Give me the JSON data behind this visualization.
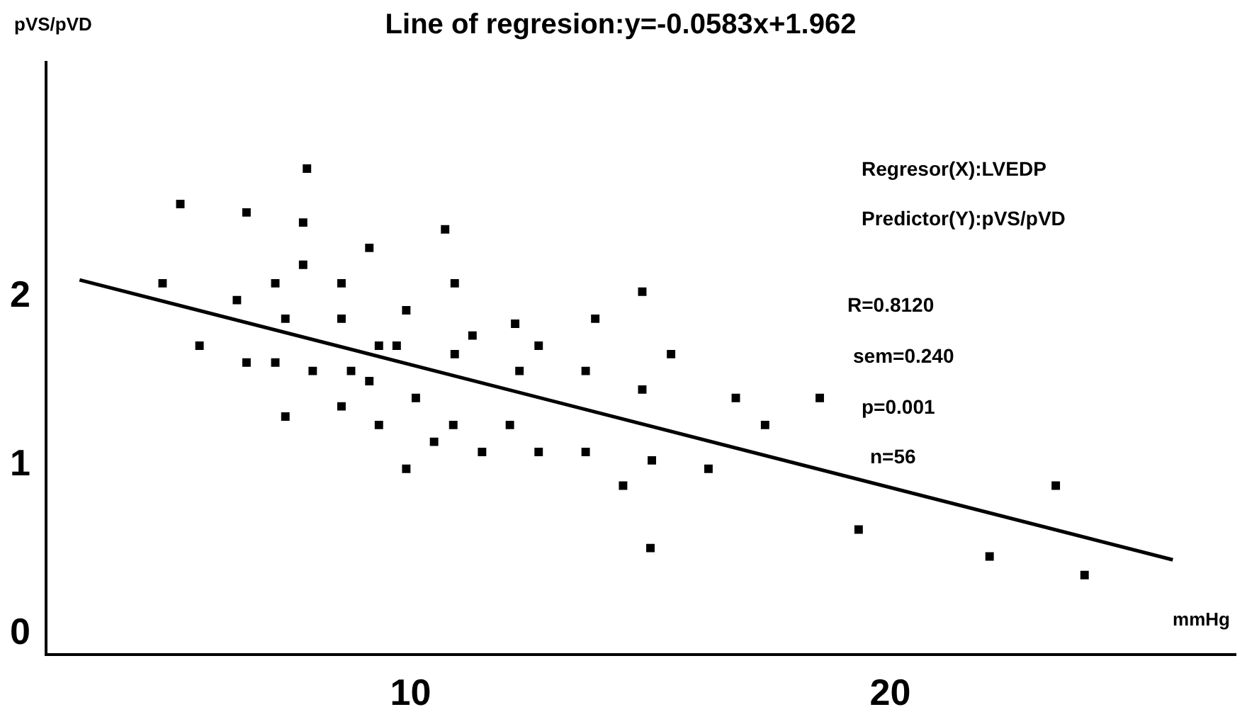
{
  "chart_data": {
    "type": "scatter",
    "title": "Line of regresion:y=-0.0583x+1.962",
    "xlabel": "mmHg",
    "ylabel": "pVS/pVD",
    "xlim": [
      2.4,
      27.2
    ],
    "xticks": [
      10,
      20
    ],
    "ylim": [
      -0.12,
      3.39
    ],
    "yticks": [
      0,
      1,
      2
    ],
    "grid": false,
    "legend": false,
    "marker": "square",
    "annotations": [
      "Regresor(X):LVEDP",
      "Predictor(Y):pVS/pVD",
      "R=0.8120",
      "sem=0.240",
      "p=0.001",
      "n=56"
    ],
    "series": [
      {
        "color": "#000000",
        "x": [
          7.84,
          5.2,
          6.58,
          7.76,
          9.14,
          7.76,
          4.83,
          7.18,
          8.56,
          6.38,
          9.91,
          7.39,
          8.56,
          5.6,
          9.34,
          9.71,
          6.58,
          7.18,
          7.96,
          8.76,
          9.14,
          10.11,
          7.39,
          8.56,
          9.34,
          10.49,
          9.91,
          10.72,
          10.92,
          14.83,
          12.18,
          13.85,
          11.29,
          12.67,
          10.92,
          15.43,
          12.27,
          13.65,
          14.83,
          16.78,
          18.53,
          17.39,
          10.89,
          12.07,
          11.49,
          12.67,
          13.65,
          15.03,
          16.21,
          14.43,
          15.0,
          23.45,
          19.34,
          22.07,
          24.05
        ],
        "values": [
          2.76,
          2.55,
          2.5,
          2.44,
          2.29,
          2.19,
          2.08,
          2.08,
          2.08,
          1.98,
          1.92,
          1.87,
          1.87,
          1.71,
          1.71,
          1.71,
          1.61,
          1.61,
          1.56,
          1.56,
          1.5,
          1.4,
          1.29,
          1.35,
          1.24,
          1.14,
          0.98,
          2.4,
          2.08,
          2.03,
          1.84,
          1.87,
          1.77,
          1.71,
          1.66,
          1.66,
          1.56,
          1.56,
          1.45,
          1.4,
          1.4,
          1.24,
          1.24,
          1.24,
          1.08,
          1.08,
          1.08,
          1.03,
          0.98,
          0.88,
          0.51,
          0.88,
          0.62,
          0.46,
          0.35
        ]
      },
      {
        "type": "line",
        "color": "#000000",
        "marker": "none",
        "line_style": "solid",
        "x": [
          3.1,
          25.89
        ],
        "values": [
          2.1,
          0.44
        ]
      }
    ]
  }
}
